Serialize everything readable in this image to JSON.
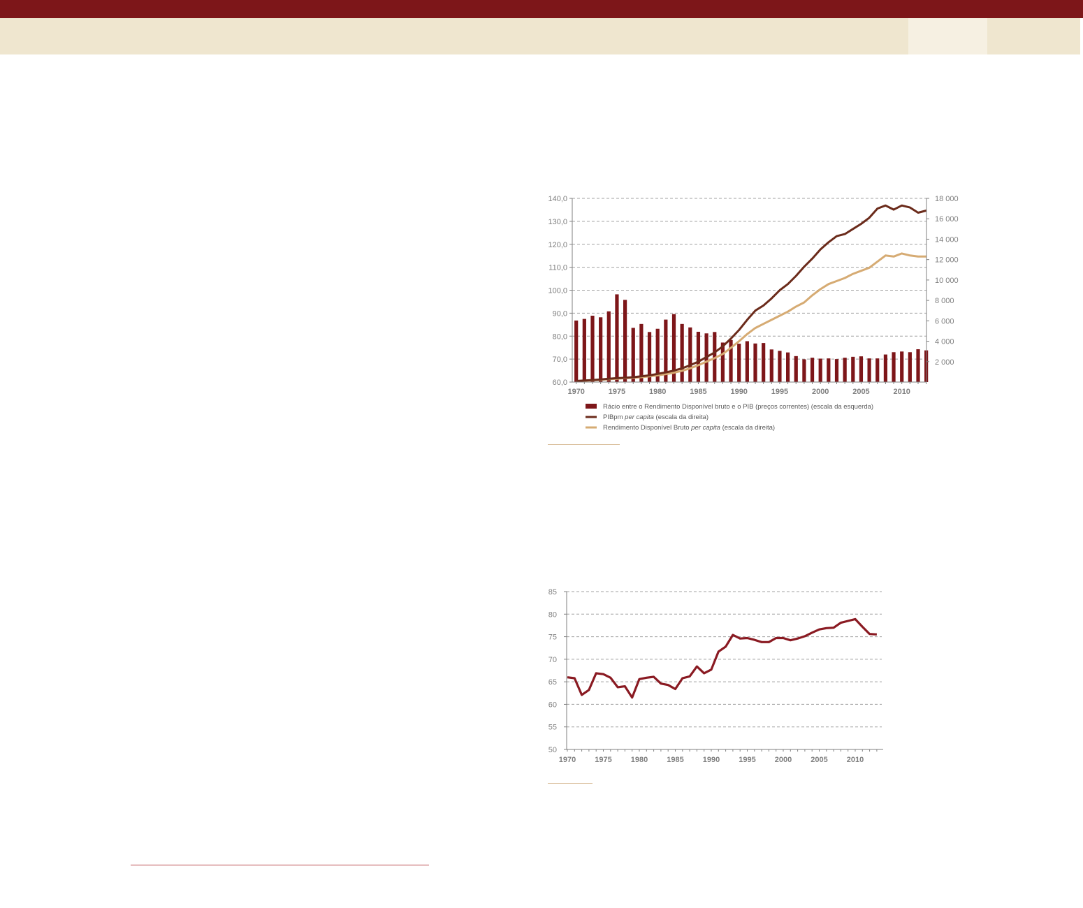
{
  "colors": {
    "header_band": "#7d1619",
    "header_strip": "#efe6cf",
    "bars": "#7d1619",
    "pib_line": "#6b2b1b",
    "rdb_line": "#d6ab73",
    "line_chart2": "#8a1a22",
    "grid": "#a0a0a0",
    "axis_text": "#7f7f7f"
  },
  "chart_data": [
    {
      "type": "bar+line",
      "xlim": [
        1970,
        2013
      ],
      "left_axis": {
        "range": [
          60,
          140
        ],
        "ticks": [
          "60,0",
          "70,0",
          "80,0",
          "90,0",
          "100,0",
          "110,0",
          "120,0",
          "130,0",
          "140,0"
        ]
      },
      "right_axis": {
        "range": [
          0,
          18000
        ],
        "ticks": [
          "2 000",
          "4 000",
          "6 000",
          "8 000",
          "10 000",
          "12 000",
          "14 000",
          "16 000",
          "18 000"
        ]
      },
      "x_ticks": [
        "1970",
        "1975",
        "1980",
        "1985",
        "1990",
        "1995",
        "2000",
        "2005",
        "2010"
      ],
      "grid": true,
      "legend_position": "bottom",
      "x": [
        1970,
        1971,
        1972,
        1973,
        1974,
        1975,
        1976,
        1977,
        1978,
        1979,
        1980,
        1981,
        1982,
        1983,
        1984,
        1985,
        1986,
        1987,
        1988,
        1989,
        1990,
        1991,
        1992,
        1993,
        1994,
        1995,
        1996,
        1997,
        1998,
        1999,
        2000,
        2001,
        2002,
        2003,
        2004,
        2005,
        2006,
        2007,
        2008,
        2009,
        2010,
        2011,
        2012,
        2013
      ],
      "bars": {
        "legend": "Rácio entre o Rendimento Disponível bruto e o  PIB (preços correntes) (escala da esquerda)",
        "values": [
          86.8,
          87.5,
          88.9,
          88.2,
          90.8,
          98.2,
          95.8,
          83.6,
          85.3,
          81.8,
          83.2,
          87.2,
          89.6,
          85.3,
          83.8,
          81.9,
          81.2,
          81.8,
          77.2,
          78.3,
          76.7,
          77.8,
          76.8,
          77.0,
          74.2,
          73.6,
          72.9,
          71.3,
          69.9,
          70.6,
          70.2,
          70.3,
          70.0,
          70.6,
          71.0,
          71.2,
          70.3,
          70.3,
          72.0,
          73.0,
          73.3,
          73.0,
          74.3,
          73.8
        ]
      },
      "lines": [
        {
          "legend_prefix": "PIBpm ",
          "legend_italic": "per capita",
          "legend_suffix": " (escala da direita)",
          "values": [
            100,
            150,
            200,
            250,
            320,
            380,
            420,
            480,
            560,
            660,
            800,
            950,
            1120,
            1350,
            1650,
            2000,
            2450,
            2900,
            3500,
            4250,
            5100,
            6100,
            7000,
            7500,
            8200,
            9000,
            9600,
            10400,
            11300,
            12100,
            13000,
            13700,
            14300,
            14500,
            15000,
            15500,
            16100,
            17000,
            17300,
            16900,
            17300,
            17100,
            16600,
            16800
          ]
        },
        {
          "legend_prefix": "Rendimento Disponível Bruto ",
          "legend_italic": "per capita",
          "legend_suffix": " (escala da direita)",
          "values": [
            90,
            130,
            170,
            220,
            280,
            330,
            380,
            420,
            480,
            560,
            660,
            780,
            920,
            1100,
            1350,
            1650,
            2000,
            2350,
            2750,
            3350,
            4000,
            4700,
            5300,
            5700,
            6100,
            6500,
            6900,
            7400,
            7800,
            8500,
            9100,
            9600,
            9900,
            10200,
            10600,
            10900,
            11200,
            11800,
            12400,
            12300,
            12600,
            12400,
            12300,
            12300
          ]
        }
      ]
    },
    {
      "type": "line",
      "xlim": [
        1970,
        2013
      ],
      "ylim": [
        50,
        85
      ],
      "y_ticks": [
        "50",
        "55",
        "60",
        "65",
        "70",
        "75",
        "80",
        "85"
      ],
      "x_ticks": [
        "1970",
        "1975",
        "1980",
        "1985",
        "1990",
        "1995",
        "2000",
        "2005",
        "2010"
      ],
      "grid": true,
      "x": [
        1970,
        1971,
        1972,
        1973,
        1974,
        1975,
        1976,
        1977,
        1978,
        1979,
        1980,
        1981,
        1982,
        1983,
        1984,
        1985,
        1986,
        1987,
        1988,
        1989,
        1990,
        1991,
        1992,
        1993,
        1994,
        1995,
        1996,
        1997,
        1998,
        1999,
        2000,
        2001,
        2002,
        2003,
        2004,
        2005,
        2006,
        2007,
        2008,
        2009,
        2010,
        2011,
        2012,
        2013
      ],
      "values": [
        66.0,
        65.8,
        62.1,
        63.2,
        66.9,
        66.7,
        65.9,
        63.8,
        64.0,
        61.5,
        65.6,
        65.9,
        66.1,
        64.6,
        64.3,
        63.4,
        65.8,
        66.2,
        68.4,
        66.9,
        67.7,
        71.7,
        72.8,
        75.4,
        74.6,
        74.7,
        74.3,
        73.8,
        73.8,
        74.7,
        74.7,
        74.2,
        74.6,
        75.1,
        75.9,
        76.6,
        76.9,
        77.0,
        78.1,
        78.5,
        78.9,
        77.2,
        75.6,
        75.5
      ]
    }
  ]
}
